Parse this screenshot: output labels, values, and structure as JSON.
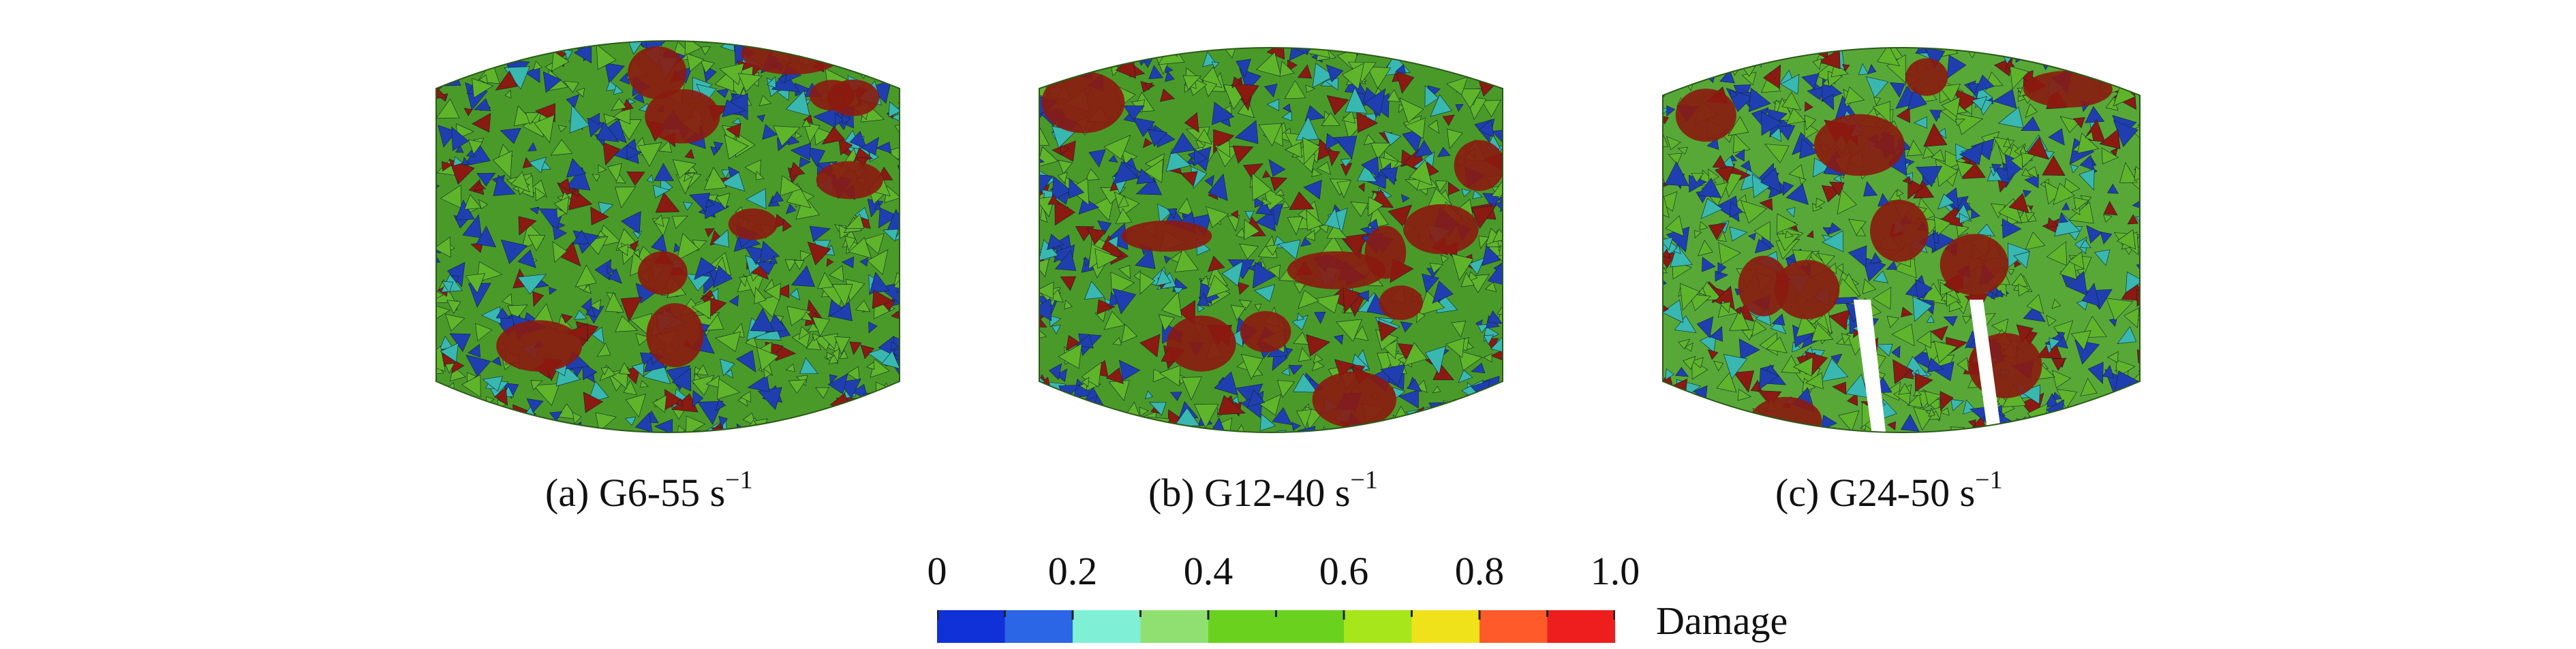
{
  "panels": [
    {
      "prefix": "(a) G6-55 s",
      "exponent": "−1"
    },
    {
      "prefix": "(b) G12-40 s",
      "exponent": "−1"
    },
    {
      "prefix": "(c) G24-50 s",
      "exponent": "−1"
    }
  ],
  "colorbar": {
    "ticks": [
      "0",
      "0.2",
      "0.4",
      "0.6",
      "0.8",
      "1.0"
    ],
    "label": "Damage",
    "colors": [
      "#1030d8",
      "#2a66e6",
      "#7ff0d6",
      "#8fe070",
      "#6ad21e",
      "#6ad21e",
      "#a6e61a",
      "#f0e21a",
      "#ff5a2a",
      "#ee1e1e"
    ]
  },
  "palette": {
    "dark_red": "#8b1a10",
    "green": "#5fb52a",
    "blue": "#1f3fb0",
    "cyan": "#38b8b0"
  }
}
